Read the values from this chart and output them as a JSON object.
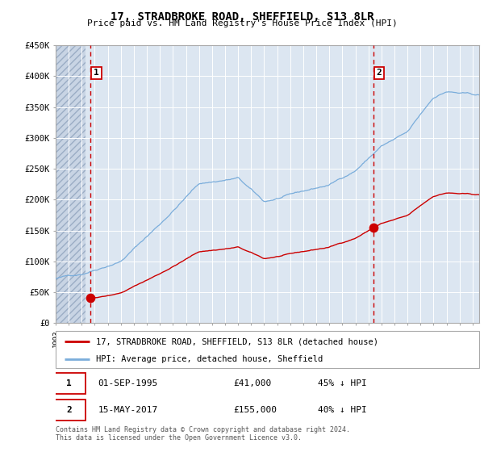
{
  "title": "17, STRADBROKE ROAD, SHEFFIELD, S13 8LR",
  "subtitle": "Price paid vs. HM Land Registry's House Price Index (HPI)",
  "ylim": [
    0,
    450000
  ],
  "yticks": [
    0,
    50000,
    100000,
    150000,
    200000,
    250000,
    300000,
    350000,
    400000,
    450000
  ],
  "ytick_labels": [
    "£0",
    "£50K",
    "£100K",
    "£150K",
    "£200K",
    "£250K",
    "£300K",
    "£350K",
    "£400K",
    "£450K"
  ],
  "background_color": "#ffffff",
  "plot_bg_color": "#dce6f1",
  "grid_color": "#ffffff",
  "sale1_date_num": 1995.67,
  "sale1_price": 41000,
  "sale2_date_num": 2017.37,
  "sale2_price": 155000,
  "sale_color": "#cc0000",
  "hpi_color": "#7aaddb",
  "vline_color": "#cc0000",
  "legend_label1": "17, STRADBROKE ROAD, SHEFFIELD, S13 8LR (detached house)",
  "legend_label2": "HPI: Average price, detached house, Sheffield",
  "annotation1_date": "01-SEP-1995",
  "annotation1_price": "£41,000",
  "annotation1_hpi": "45% ↓ HPI",
  "annotation2_date": "15-MAY-2017",
  "annotation2_price": "£155,000",
  "annotation2_hpi": "40% ↓ HPI",
  "footer": "Contains HM Land Registry data © Crown copyright and database right 2024.\nThis data is licensed under the Open Government Licence v3.0.",
  "xmin": 1993.0,
  "xmax": 2025.5,
  "hatch_end": 1995.3
}
